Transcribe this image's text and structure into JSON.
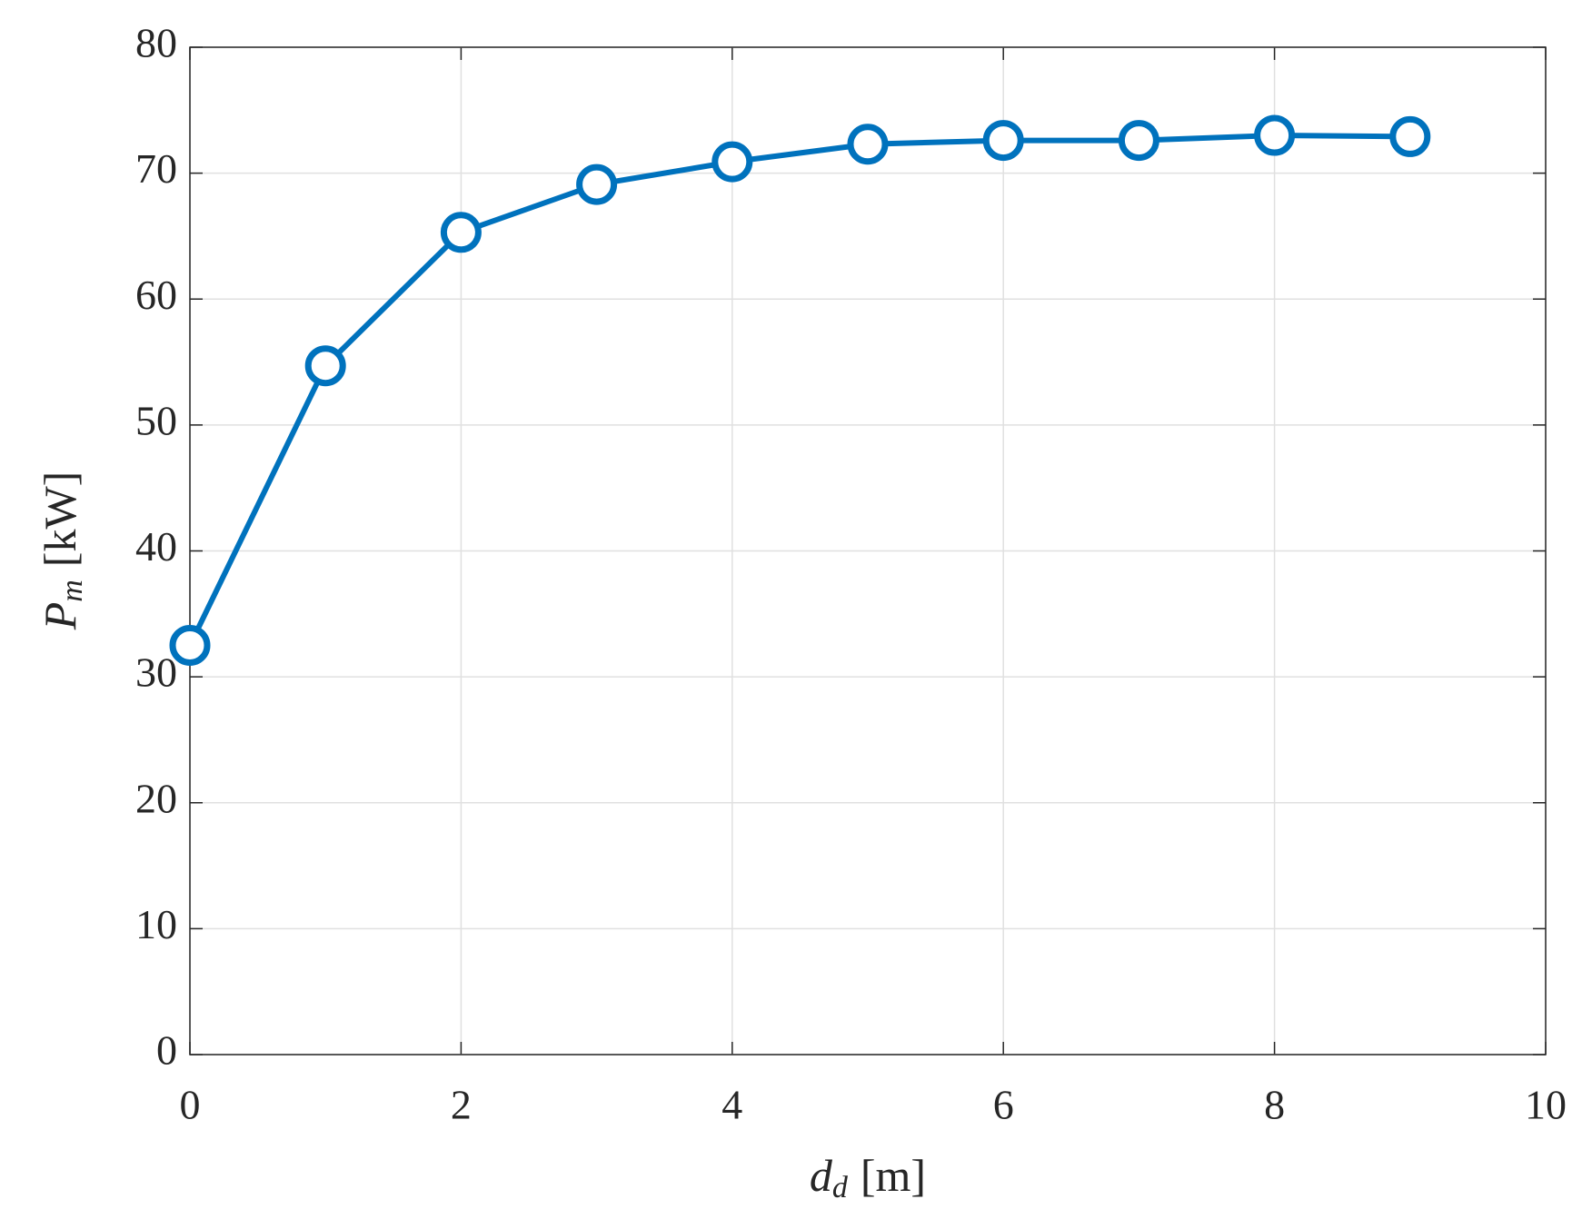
{
  "chart_data": {
    "type": "line",
    "xlabel": {
      "symbol": "d",
      "subscript": "d",
      "unit": "[m]"
    },
    "ylabel": {
      "symbol": "P",
      "subscript": "m",
      "unit": "[kW]"
    },
    "x": [
      0,
      1,
      2,
      3,
      4,
      5,
      6,
      7,
      8,
      9
    ],
    "series": [
      {
        "color": "#0072bd",
        "values": [
          32.5,
          54.7,
          65.3,
          69.1,
          70.9,
          72.3,
          72.6,
          72.6,
          73.0,
          72.9
        ]
      }
    ],
    "xlim": [
      0,
      10
    ],
    "xticks": [
      0,
      2,
      4,
      6,
      8,
      10
    ],
    "ylim": [
      0,
      80
    ],
    "yticks": [
      0,
      10,
      20,
      30,
      40,
      50,
      60,
      70,
      80
    ],
    "grid": true,
    "marker": "open-circle"
  }
}
